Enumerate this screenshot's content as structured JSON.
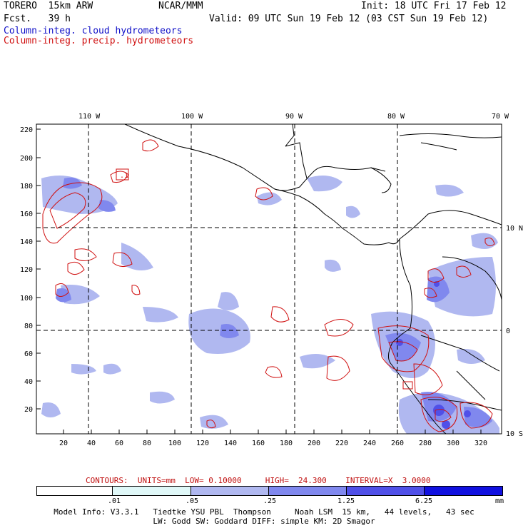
{
  "header": {
    "model": "TORERO  15km ARW",
    "center": "NCAR/MMM",
    "init": "Init: 18 UTC Fri 17 Feb 12",
    "fcst": "Fcst.   39 h",
    "valid": "Valid: 09 UTC Sun 19 Feb 12 (03 CST Sun 19 Feb 12)"
  },
  "legend": {
    "cloud": "Column-integ. cloud hydrometeors",
    "precip": "Column-integ. precip. hydrometeors"
  },
  "map": {
    "lon_labels": [
      "110 W",
      "100 W",
      "90 W",
      "80 W",
      "70 W"
    ],
    "lat_labels": [
      "10 N",
      "0",
      "10 S"
    ],
    "y_ticks": [
      "220",
      "200",
      "180",
      "160",
      "140",
      "120",
      "100",
      "80",
      "60",
      "40",
      "20"
    ],
    "x_ticks": [
      "20",
      "40",
      "60",
      "80",
      "100",
      "120",
      "140",
      "160",
      "180",
      "200",
      "220",
      "240",
      "260",
      "280",
      "300",
      "320"
    ],
    "contour_high_label": ".1"
  },
  "contours": {
    "title": "CONTOURS:",
    "units": "UNITS=mm",
    "low": "LOW= 0.10000",
    "high": "HIGH=  24.300",
    "interval": "INTERVAL=X  3.0000"
  },
  "colorbar": {
    "labels": [
      ".01",
      ".05",
      ".25",
      "1.25",
      "6.25"
    ],
    "unit": "mm",
    "colors": [
      "#ffffff",
      "#e0f8f8",
      "#b0b8f0",
      "#8088ee",
      "#5050e8",
      "#1010e0"
    ]
  },
  "footer": {
    "line1": "Model Info: V3.3.1   Tiedtke YSU PBL  Thompson     Noah LSM  15 km,   44 levels,   43 sec",
    "line2": "LW: Godd SW: Goddard DIFF: simple KM: 2D Smagor"
  }
}
